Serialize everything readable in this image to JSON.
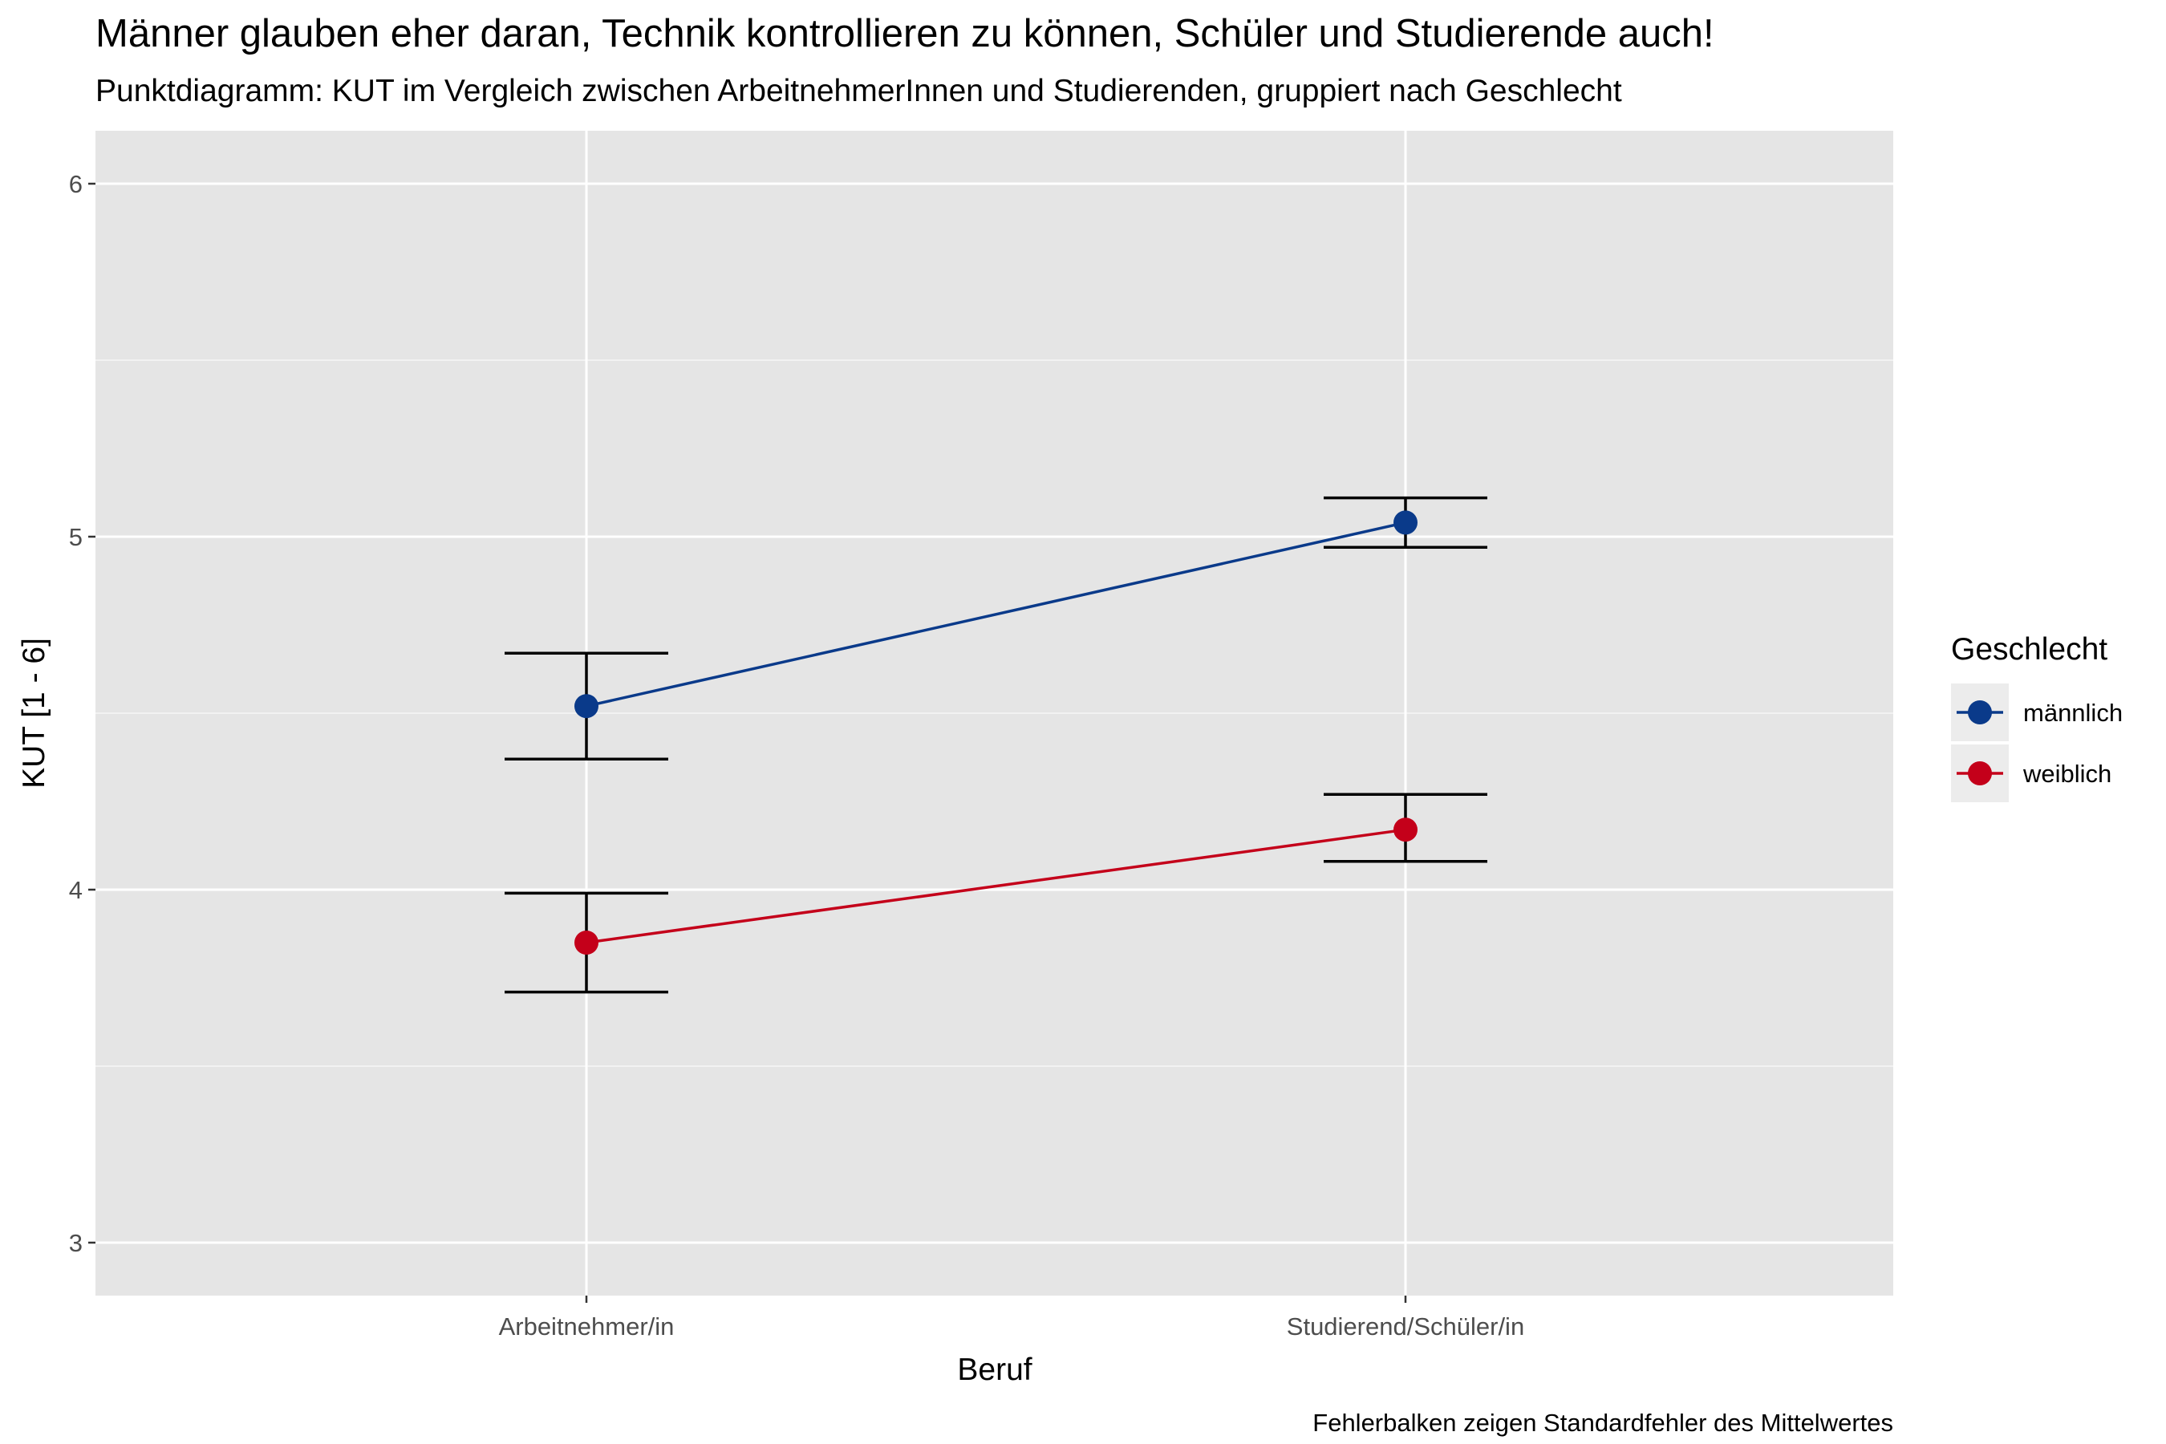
{
  "chart_data": {
    "type": "line",
    "title": "Männer glauben eher daran, Technik kontrollieren zu können, Schüler und Studierende auch!",
    "subtitle": "Punktdiagramm: KUT im Vergleich zwischen ArbeitnehmerInnen und Studierenden, gruppiert nach Geschlecht",
    "xlabel": "Beruf",
    "ylabel": "KUT [1 - 6]",
    "caption": "Fehlerbalken zeigen Standardfehler des Mittelwertes",
    "categories": [
      "Arbeitnehmer/in",
      "Studierend/Schüler/in"
    ],
    "ylim": [
      2.85,
      6.15
    ],
    "yticks": [
      3,
      4,
      5,
      6
    ],
    "grid": true,
    "legend": {
      "title": "Geschlecht",
      "position": "right"
    },
    "series": [
      {
        "name": "männlich",
        "color": "#0a3a8a",
        "values": [
          4.52,
          5.04
        ],
        "error_low": [
          4.37,
          4.97
        ],
        "error_high": [
          4.67,
          5.11
        ]
      },
      {
        "name": "weiblich",
        "color": "#c4001a",
        "values": [
          3.85,
          4.17
        ],
        "error_low": [
          3.71,
          4.08
        ],
        "error_high": [
          3.99,
          4.27
        ]
      }
    ]
  }
}
